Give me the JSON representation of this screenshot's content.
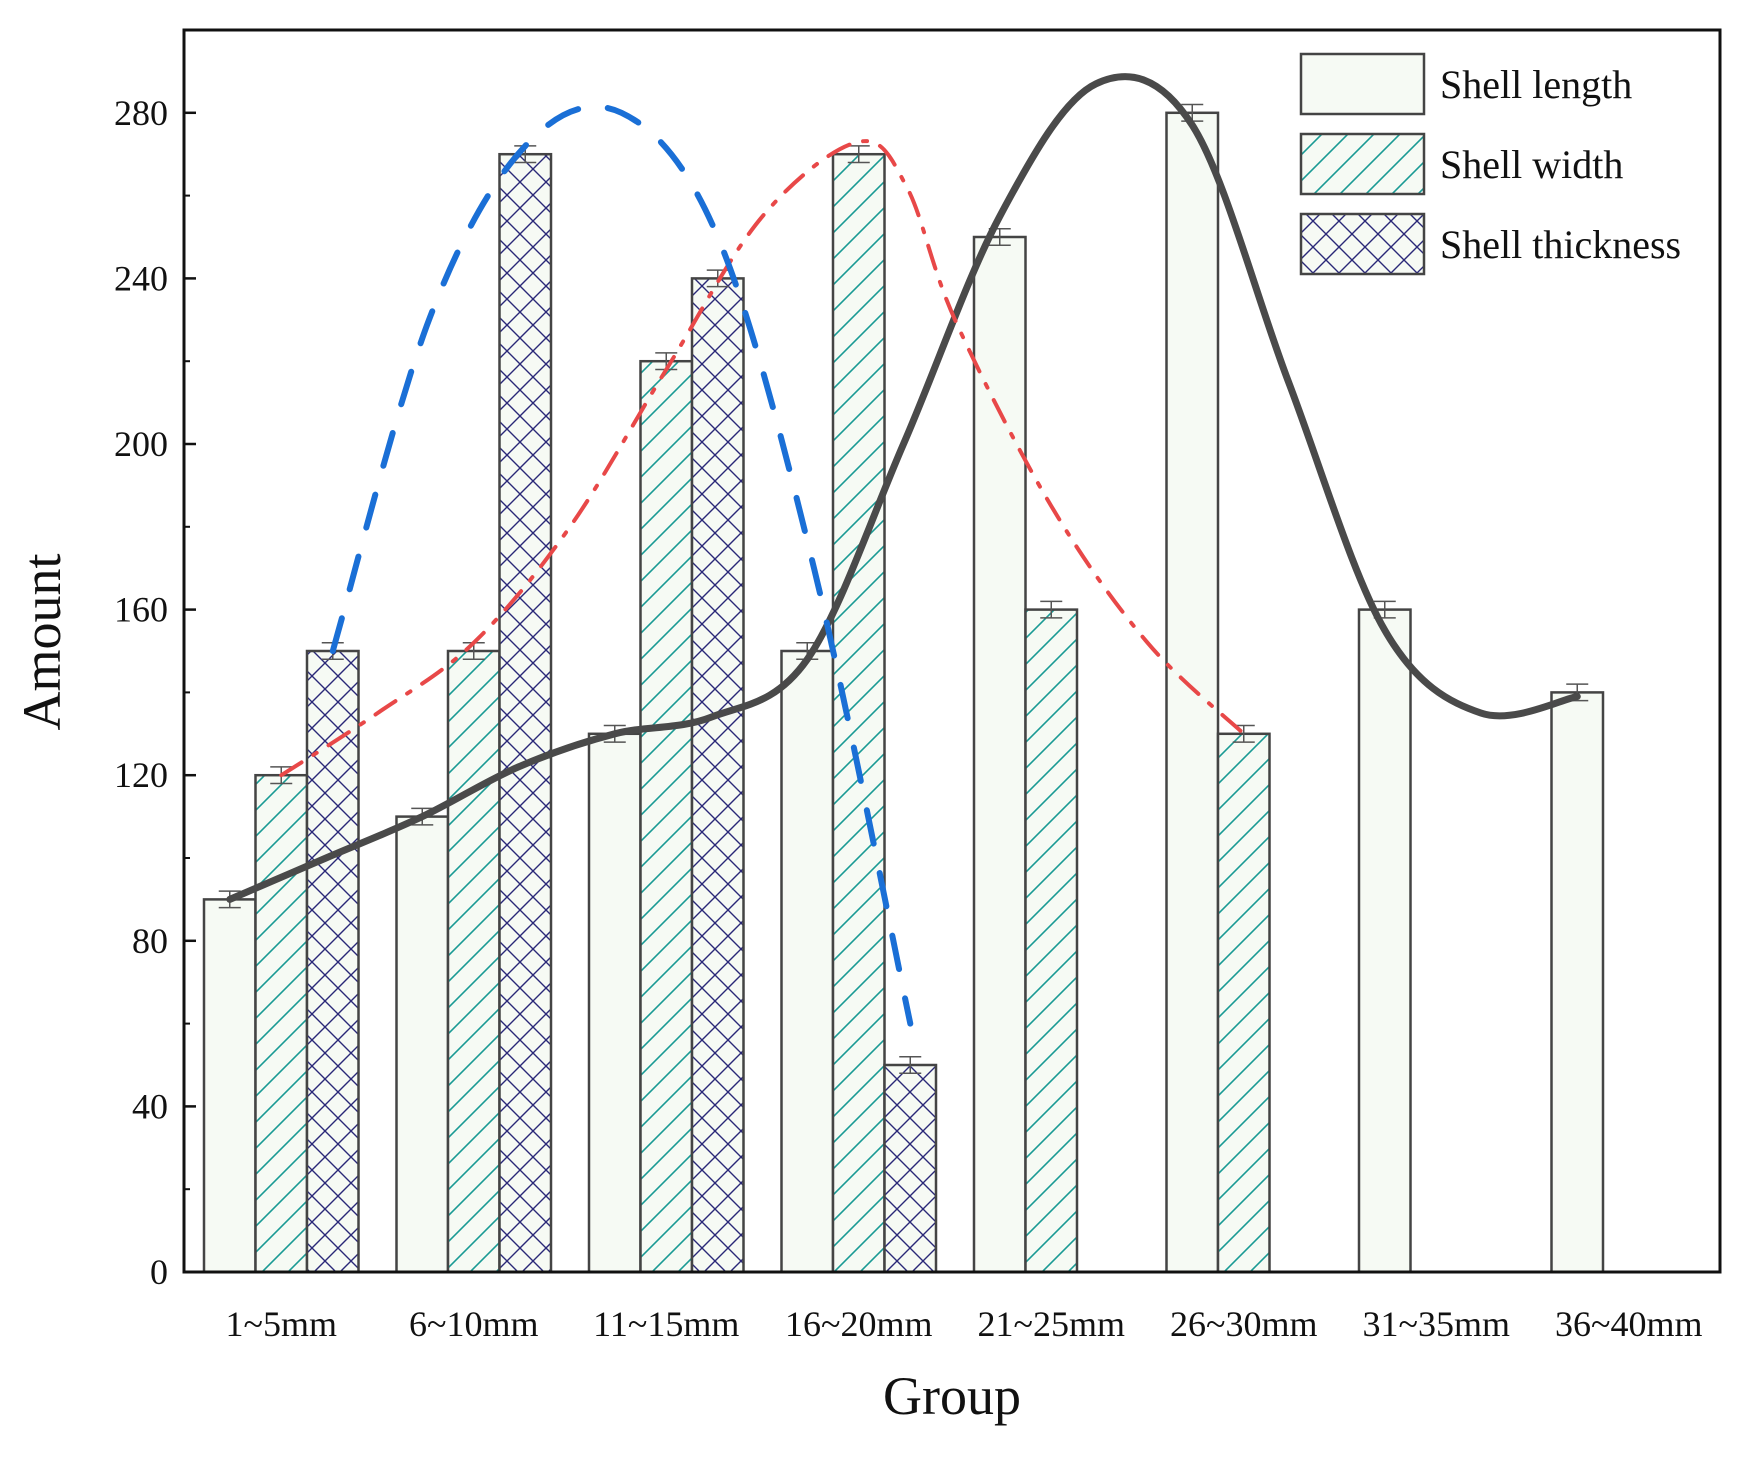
{
  "chart_data": {
    "type": "bar",
    "title": "",
    "xlabel": "Group",
    "ylabel": "Amount",
    "ylim": [
      0,
      300
    ],
    "yticks": [
      0,
      40,
      80,
      120,
      160,
      200,
      240,
      280
    ],
    "categories": [
      "1~5mm",
      "6~10mm",
      "11~15mm",
      "16~20mm",
      "21~25mm",
      "26~30mm",
      "31~35mm",
      "36~40mm"
    ],
    "legend_position": "top-right",
    "grid": false,
    "series": [
      {
        "name": "Shell length",
        "pattern": "plain",
        "fill": "#f6faf4",
        "values": [
          90,
          110,
          130,
          150,
          250,
          280,
          160,
          140
        ],
        "errors": [
          2,
          2,
          2,
          2,
          2,
          2,
          2,
          2
        ]
      },
      {
        "name": "Shell width",
        "pattern": "diagonal",
        "fill": "#f6faf4",
        "pattern_color": "#1a9a94",
        "values": [
          120,
          150,
          220,
          270,
          160,
          130,
          null,
          null
        ],
        "errors": [
          2,
          2,
          2,
          2,
          2,
          2,
          null,
          null
        ]
      },
      {
        "name": "Shell thickness",
        "pattern": "crosshatch",
        "fill": "#f6faf4",
        "pattern_color": "#2a2878",
        "values": [
          150,
          270,
          240,
          50,
          null,
          null,
          null,
          null
        ],
        "errors": [
          2,
          2,
          2,
          2,
          null,
          null,
          null,
          null
        ]
      }
    ],
    "fit_curves": [
      {
        "series": "Shell length",
        "color": "#4a4a4a",
        "style": "solid",
        "points": [
          [
            0.0,
            90
          ],
          [
            0.5,
            100
          ],
          [
            1.0,
            110
          ],
          [
            1.5,
            122
          ],
          [
            2.0,
            130
          ],
          [
            2.5,
            134
          ],
          [
            3.0,
            148
          ],
          [
            3.5,
            200
          ],
          [
            4.0,
            255
          ],
          [
            4.5,
            287
          ],
          [
            5.0,
            277
          ],
          [
            5.5,
            215
          ],
          [
            6.0,
            155
          ],
          [
            6.5,
            135
          ],
          [
            7.0,
            139
          ]
        ]
      },
      {
        "series": "Shell width",
        "color": "#e84848",
        "style": "dash-dot",
        "points": [
          [
            0.0,
            120
          ],
          [
            0.5,
            135
          ],
          [
            1.0,
            152
          ],
          [
            1.5,
            180
          ],
          [
            2.0,
            218
          ],
          [
            2.5,
            255
          ],
          [
            3.0,
            273
          ],
          [
            3.25,
            262
          ],
          [
            3.5,
            230
          ],
          [
            4.0,
            185
          ],
          [
            4.5,
            152
          ],
          [
            5.0,
            130
          ]
        ]
      },
      {
        "series": "Shell thickness",
        "color": "#1a6fd6",
        "style": "dashed",
        "points": [
          [
            0.0,
            150
          ],
          [
            0.5,
            230
          ],
          [
            1.0,
            272
          ],
          [
            1.5,
            280
          ],
          [
            2.0,
            250
          ],
          [
            2.5,
            170
          ],
          [
            3.0,
            60
          ]
        ]
      }
    ]
  }
}
